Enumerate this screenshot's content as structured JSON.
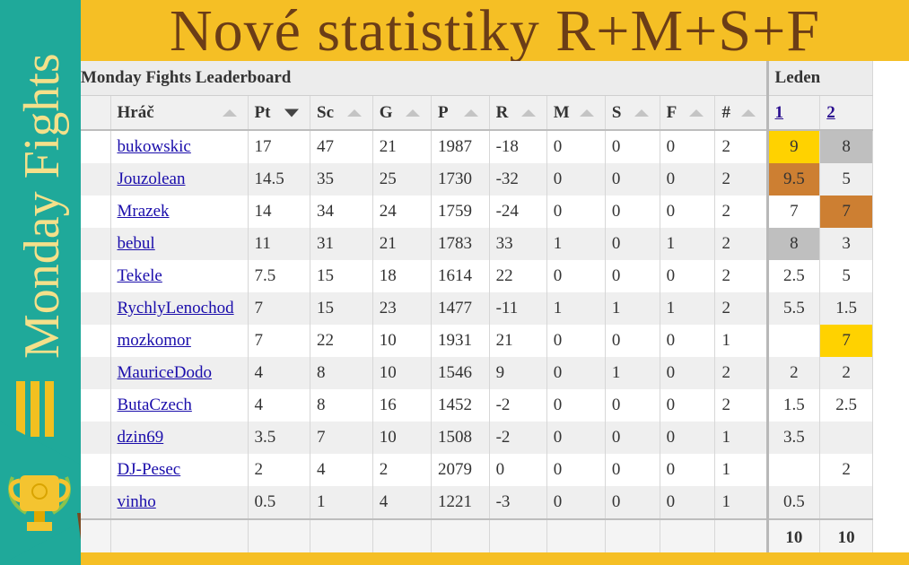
{
  "header": {
    "title": "Nové statistiky R+M+S+F"
  },
  "sidebar": {
    "vertical_title": "Monday Fights",
    "menu_icon": "hamburger-icon",
    "trophy_icon": "trophy-icon"
  },
  "table": {
    "group_title": "Monday Fights Leaderboard",
    "month_title": "Leden",
    "columns": [
      "Hráč",
      "Pt",
      "Sc",
      "G",
      "P",
      "R",
      "M",
      "S",
      "F",
      "#"
    ],
    "sorted_column": "Pt",
    "rounds": [
      "1",
      "2"
    ],
    "rows": [
      {
        "player": "bukowskic",
        "pt": "17",
        "sc": "47",
        "g": "21",
        "p": "1987",
        "r": "-18",
        "m": "0",
        "s": "0",
        "f": "0",
        "n": "2",
        "r1": "9",
        "r2": "8"
      },
      {
        "player": "Jouzolean",
        "pt": "14.5",
        "sc": "35",
        "g": "25",
        "p": "1730",
        "r": "-32",
        "m": "0",
        "s": "0",
        "f": "0",
        "n": "2",
        "r1": "9.5",
        "r2": "5"
      },
      {
        "player": "Mrazek",
        "pt": "14",
        "sc": "34",
        "g": "24",
        "p": "1759",
        "r": "-24",
        "m": "0",
        "s": "0",
        "f": "0",
        "n": "2",
        "r1": "7",
        "r2": "7"
      },
      {
        "player": "bebul",
        "pt": "11",
        "sc": "31",
        "g": "21",
        "p": "1783",
        "r": "33",
        "m": "1",
        "s": "0",
        "f": "1",
        "n": "2",
        "r1": "8",
        "r2": "3"
      },
      {
        "player": "Tekele",
        "pt": "7.5",
        "sc": "15",
        "g": "18",
        "p": "1614",
        "r": "22",
        "m": "0",
        "s": "0",
        "f": "0",
        "n": "2",
        "r1": "2.5",
        "r2": "5"
      },
      {
        "player": "RychlyLenochod",
        "pt": "7",
        "sc": "15",
        "g": "23",
        "p": "1477",
        "r": "-11",
        "m": "1",
        "s": "1",
        "f": "1",
        "n": "2",
        "r1": "5.5",
        "r2": "1.5"
      },
      {
        "player": "mozkomor",
        "pt": "7",
        "sc": "22",
        "g": "10",
        "p": "1931",
        "r": "21",
        "m": "0",
        "s": "0",
        "f": "0",
        "n": "1",
        "r1": "",
        "r2": "7"
      },
      {
        "player": "MauriceDodo",
        "pt": "4",
        "sc": "8",
        "g": "10",
        "p": "1546",
        "r": "9",
        "m": "0",
        "s": "1",
        "f": "0",
        "n": "2",
        "r1": "2",
        "r2": "2"
      },
      {
        "player": "ButaCzech",
        "pt": "4",
        "sc": "8",
        "g": "16",
        "p": "1452",
        "r": "-2",
        "m": "0",
        "s": "0",
        "f": "0",
        "n": "2",
        "r1": "1.5",
        "r2": "2.5"
      },
      {
        "player": "dzin69",
        "pt": "3.5",
        "sc": "7",
        "g": "10",
        "p": "1508",
        "r": "-2",
        "m": "0",
        "s": "0",
        "f": "0",
        "n": "1",
        "r1": "3.5",
        "r2": ""
      },
      {
        "player": "DJ-Pesec",
        "pt": "2",
        "sc": "4",
        "g": "2",
        "p": "2079",
        "r": "0",
        "m": "0",
        "s": "0",
        "f": "0",
        "n": "1",
        "r1": "",
        "r2": "2"
      },
      {
        "player": "vinho",
        "pt": "0.5",
        "sc": "1",
        "g": "4",
        "p": "1221",
        "r": "-3",
        "m": "0",
        "s": "0",
        "f": "0",
        "n": "1",
        "r1": "0.5",
        "r2": ""
      }
    ],
    "totals": {
      "r1": "10",
      "r2": "10"
    },
    "highlight_colors": {
      "gold": "#ffd200",
      "silver": "#bfbfbf",
      "bronze": "#cd7f32"
    },
    "highlights": {
      "0.r1": "gold",
      "0.r2": "silver",
      "1.r1": "bronze",
      "2.r2": "bronze",
      "3.r1": "silver",
      "6.r2": "gold"
    }
  }
}
